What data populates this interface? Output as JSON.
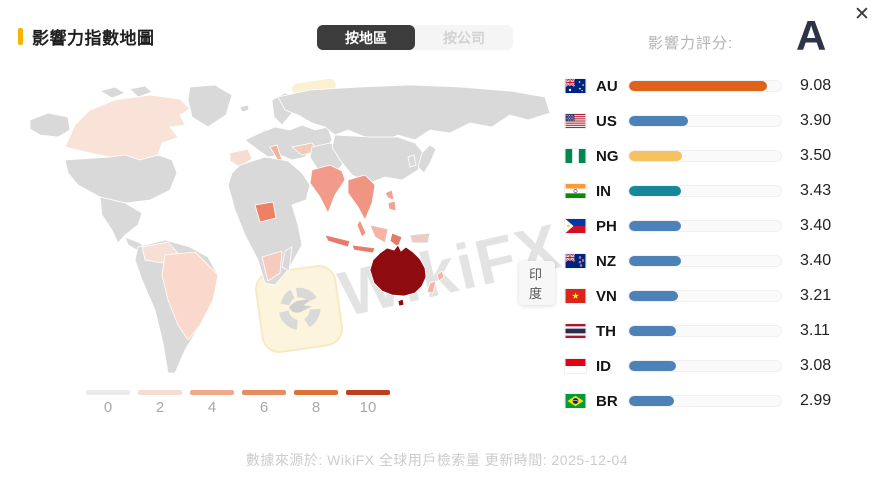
{
  "header": {
    "title": "影響力指數地圖",
    "accent_color": "#f7b500",
    "tabs": [
      {
        "label": "按地區",
        "active": true
      },
      {
        "label": "按公司",
        "active": false
      }
    ],
    "score_label": "影響力評分:",
    "score_grade": "A",
    "close_glyph": "✕"
  },
  "map": {
    "tooltip": "印度",
    "watermark_text": "WikiFX",
    "watermark_icon": "wikifx-eagle-logo",
    "default_region_color": "#d9d9d9",
    "regions": {
      "canada": "#f9e2d8",
      "brazil": "#fad9cc",
      "colombia": "#f8dfd6",
      "uk": "#f2dcd4",
      "spain": "#f6ddd3",
      "italy": "#eeb49c",
      "turkey": "#f3c9ba",
      "nigeria": "#ee8164",
      "south-africa": "#f6cabc",
      "india": "#f29b8b",
      "indochina": "#ef9582",
      "indonesia": "#e87a6a",
      "borneo": "#f4b4a6",
      "philippines": "#f0a392",
      "new-guinea": "#e8cfc6",
      "australia": "#8e0c10",
      "tasmania": "#8e0c10",
      "new-zealand": "#f5b3a8"
    },
    "legend": {
      "ticks": [
        "0",
        "2",
        "4",
        "6",
        "8",
        "10"
      ],
      "colors": [
        "#eceae8",
        "#f5ddd1",
        "#eeaa8a",
        "#e78b60",
        "#e06f38",
        "#c03d20"
      ]
    }
  },
  "rankings": {
    "items": [
      {
        "code": "AU",
        "flag_icon": "flag-au",
        "value": "9.08",
        "bar_color": "#e0611a"
      },
      {
        "code": "US",
        "flag_icon": "flag-us",
        "value": "3.90",
        "bar_color": "#4d82b8"
      },
      {
        "code": "NG",
        "flag_icon": "flag-ng",
        "value": "3.50",
        "bar_color": "#f6c160"
      },
      {
        "code": "IN",
        "flag_icon": "flag-in",
        "value": "3.43",
        "bar_color": "#15889c"
      },
      {
        "code": "PH",
        "flag_icon": "flag-ph",
        "value": "3.40",
        "bar_color": "#4d82b8"
      },
      {
        "code": "NZ",
        "flag_icon": "flag-nz",
        "value": "3.40",
        "bar_color": "#4d82b8"
      },
      {
        "code": "VN",
        "flag_icon": "flag-vn",
        "value": "3.21",
        "bar_color": "#4d82b8"
      },
      {
        "code": "TH",
        "flag_icon": "flag-th",
        "value": "3.11",
        "bar_color": "#4d82b8"
      },
      {
        "code": "ID",
        "flag_icon": "flag-id",
        "value": "3.08",
        "bar_color": "#4d82b8"
      },
      {
        "code": "BR",
        "flag_icon": "flag-br",
        "value": "2.99",
        "bar_color": "#4d82b8"
      }
    ]
  },
  "footer": {
    "text": "數據來源於: WikiFX 全球用戶檢索量 更新時間: 2025-12-04"
  }
}
